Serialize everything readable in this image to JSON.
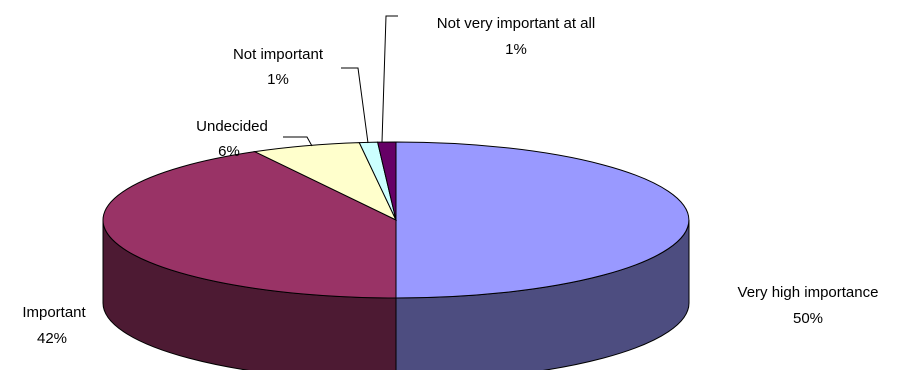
{
  "chart_data": {
    "type": "pie",
    "title": "",
    "slices": [
      {
        "label": "Very high importance",
        "value_label": "50%",
        "value": 50,
        "color": "#9999FF",
        "side": "#4D4D80"
      },
      {
        "label": "Important",
        "value_label": "42%",
        "value": 42,
        "color": "#993366",
        "side": "#4D1A33"
      },
      {
        "label": "Undecided",
        "value_label": "6%",
        "value": 6,
        "color": "#FFFFCC",
        "side": "#808066"
      },
      {
        "label": "Not important",
        "value_label": "1%",
        "value": 1,
        "color": "#CCFFFF",
        "side": "#668080"
      },
      {
        "label": "Not very important at all",
        "value_label": "1%",
        "value": 1,
        "color": "#660066",
        "side": "#330033"
      }
    ]
  }
}
